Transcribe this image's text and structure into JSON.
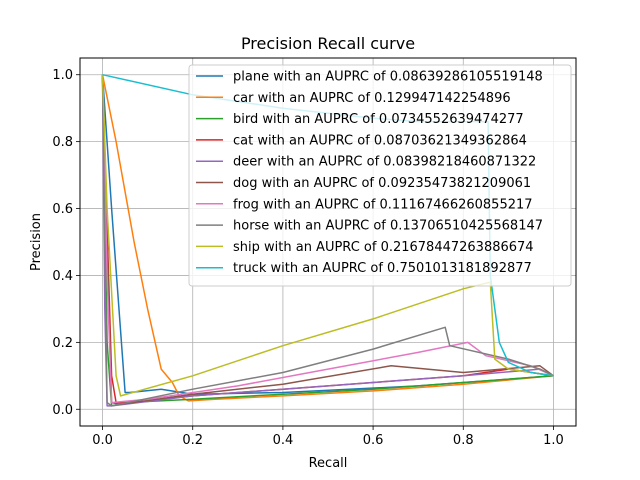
{
  "chart_data": {
    "type": "line",
    "title": "Precision Recall curve",
    "xlabel": "Recall",
    "ylabel": "Precision",
    "xlim": [
      -0.05,
      1.05
    ],
    "ylim": [
      -0.05,
      1.05
    ],
    "xticks": [
      "0.0",
      "0.2",
      "0.4",
      "0.6",
      "0.8",
      "1.0"
    ],
    "yticks": [
      "0.0",
      "0.2",
      "0.4",
      "0.6",
      "0.8",
      "1.0"
    ],
    "grid": true,
    "legend_position": "top-right",
    "series": [
      {
        "name": "plane with an AUPRC of 0.08639286105519148",
        "color": "#1f77b4",
        "x": [
          0.0,
          0.02,
          0.05,
          0.06,
          0.13,
          0.2,
          0.4,
          0.7,
          1.0
        ],
        "y": [
          1.0,
          0.6,
          0.05,
          0.05,
          0.06,
          0.045,
          0.05,
          0.07,
          0.1
        ]
      },
      {
        "name": "car with an AUPRC of 0.129947142254896",
        "color": "#ff7f0e",
        "x": [
          0.0,
          0.03,
          0.07,
          0.1,
          0.13,
          0.155,
          0.17,
          0.19,
          0.25,
          0.4,
          0.6,
          0.8,
          1.0
        ],
        "y": [
          1.0,
          0.8,
          0.5,
          0.3,
          0.12,
          0.08,
          0.04,
          0.025,
          0.03,
          0.04,
          0.055,
          0.075,
          0.1
        ]
      },
      {
        "name": "bird with an AUPRC of 0.0734552639474277",
        "color": "#2ca02c",
        "x": [
          0.0,
          0.01,
          0.02,
          0.05,
          0.2,
          0.4,
          0.6,
          0.8,
          1.0
        ],
        "y": [
          1.0,
          0.2,
          0.01,
          0.02,
          0.03,
          0.045,
          0.06,
          0.08,
          0.1
        ]
      },
      {
        "name": "cat with an AUPRC of 0.08703621349362864",
        "color": "#d62728",
        "x": [
          0.0,
          0.02,
          0.03,
          0.06,
          0.2,
          0.4,
          0.6,
          0.8,
          0.9,
          1.0
        ],
        "y": [
          1.0,
          0.1,
          0.02,
          0.02,
          0.04,
          0.06,
          0.08,
          0.1,
          0.12,
          0.1
        ]
      },
      {
        "name": "deer with an AUPRC of 0.08398218460871322",
        "color": "#9467bd",
        "x": [
          0.0,
          0.005,
          0.01,
          0.02,
          0.2,
          0.4,
          0.6,
          0.8,
          0.97,
          1.0
        ],
        "y": [
          1.0,
          0.3,
          0.01,
          0.01,
          0.04,
          0.06,
          0.08,
          0.1,
          0.12,
          0.1
        ]
      },
      {
        "name": "dog with an AUPRC of 0.09235473821209061",
        "color": "#8c564b",
        "x": [
          0.0,
          0.01,
          0.02,
          0.04,
          0.2,
          0.4,
          0.64,
          0.8,
          0.97,
          1.0
        ],
        "y": [
          1.0,
          0.5,
          0.02,
          0.015,
          0.045,
          0.075,
          0.13,
          0.11,
          0.13,
          0.1
        ]
      },
      {
        "name": "frog with an AUPRC of 0.11167466260855217",
        "color": "#e377c2",
        "x": [
          0.0,
          0.01,
          0.02,
          0.1,
          0.3,
          0.5,
          0.7,
          0.81,
          0.85,
          0.95,
          1.0
        ],
        "y": [
          1.0,
          0.4,
          0.02,
          0.03,
          0.07,
          0.12,
          0.17,
          0.2,
          0.16,
          0.13,
          0.1
        ]
      },
      {
        "name": "horse with an AUPRC of 0.13706510425568147",
        "color": "#7f7f7f",
        "x": [
          0.0,
          0.005,
          0.01,
          0.02,
          0.2,
          0.4,
          0.6,
          0.76,
          0.77,
          0.9,
          0.97,
          1.0
        ],
        "y": [
          1.0,
          0.5,
          0.02,
          0.01,
          0.06,
          0.11,
          0.18,
          0.245,
          0.19,
          0.15,
          0.12,
          0.1
        ]
      },
      {
        "name": "ship with an AUPRC of 0.21678447263886674",
        "color": "#bcbd22",
        "x": [
          0.0,
          0.01,
          0.03,
          0.04,
          0.2,
          0.4,
          0.6,
          0.8,
          0.86,
          0.87,
          0.9,
          1.0
        ],
        "y": [
          1.0,
          0.6,
          0.1,
          0.04,
          0.1,
          0.19,
          0.27,
          0.36,
          0.38,
          0.15,
          0.12,
          0.1
        ]
      },
      {
        "name": "truck with an AUPRC of 0.7501013181892877",
        "color": "#17becf",
        "x": [
          0.0,
          0.2,
          0.4,
          0.6,
          0.7,
          0.8,
          0.855,
          0.86,
          0.87,
          0.88,
          0.9,
          0.95,
          1.0
        ],
        "y": [
          1.0,
          0.94,
          0.9,
          0.87,
          0.86,
          0.86,
          0.86,
          0.4,
          0.3,
          0.2,
          0.14,
          0.11,
          0.1
        ]
      }
    ]
  }
}
